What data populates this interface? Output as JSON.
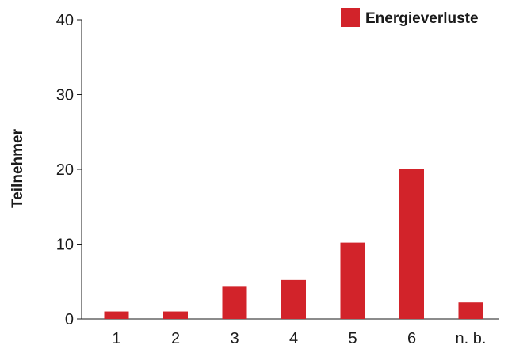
{
  "chart_data": {
    "type": "bar",
    "categories": [
      "1",
      "2",
      "3",
      "4",
      "5",
      "6",
      "n. b."
    ],
    "series": [
      {
        "name": "Energieverluste",
        "values": [
          1,
          1,
          4.3,
          5.2,
          10.2,
          20,
          2.2
        ],
        "color": "#d2232a"
      }
    ],
    "ylabel": "Teilnehmer",
    "xlabel": "",
    "title": "",
    "ylim": [
      0,
      40
    ],
    "yticks": [
      0,
      10,
      20,
      30,
      40
    ],
    "grid": false,
    "legend_position": "top-right"
  }
}
